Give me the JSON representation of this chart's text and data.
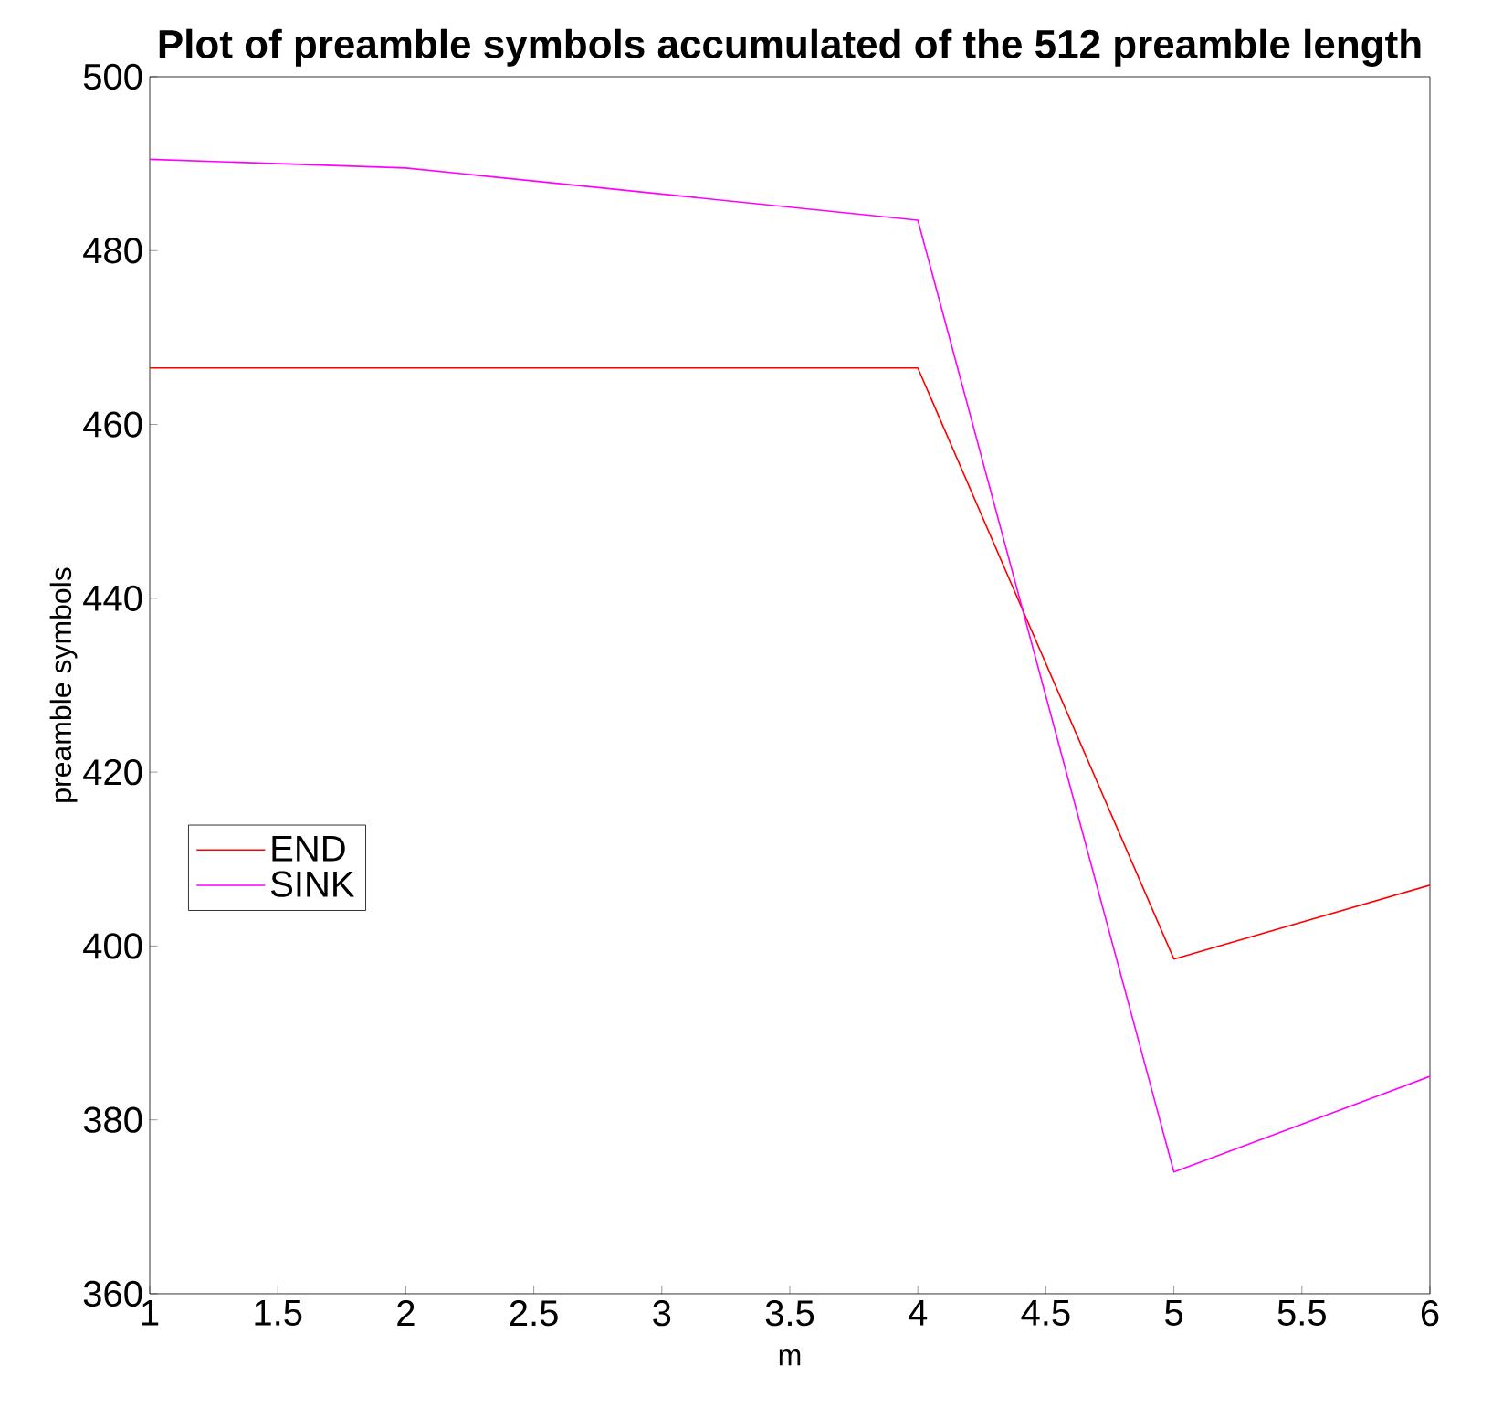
{
  "chart_data": {
    "type": "line",
    "title": "Plot of preamble symbols accumulated of the 512 preamble length",
    "xlabel": "m",
    "ylabel": "preamble symbols",
    "x": [
      1,
      2,
      4,
      5,
      6
    ],
    "series": [
      {
        "name": "END",
        "color": "#ff0000",
        "values": [
          466.5,
          466.5,
          466.5,
          398.5,
          407
        ]
      },
      {
        "name": "SINK",
        "color": "#ff00ff",
        "values": [
          490.5,
          489.5,
          483.5,
          374,
          385
        ]
      }
    ],
    "xlim": [
      1,
      6
    ],
    "ylim": [
      360,
      500
    ],
    "xticks": [
      1,
      1.5,
      2,
      2.5,
      3,
      3.5,
      4,
      4.5,
      5,
      5.5,
      6
    ],
    "yticks": [
      360,
      380,
      400,
      420,
      440,
      460,
      480,
      500
    ],
    "grid": false,
    "legend": "left",
    "marker": "none",
    "line_style": "solid"
  }
}
